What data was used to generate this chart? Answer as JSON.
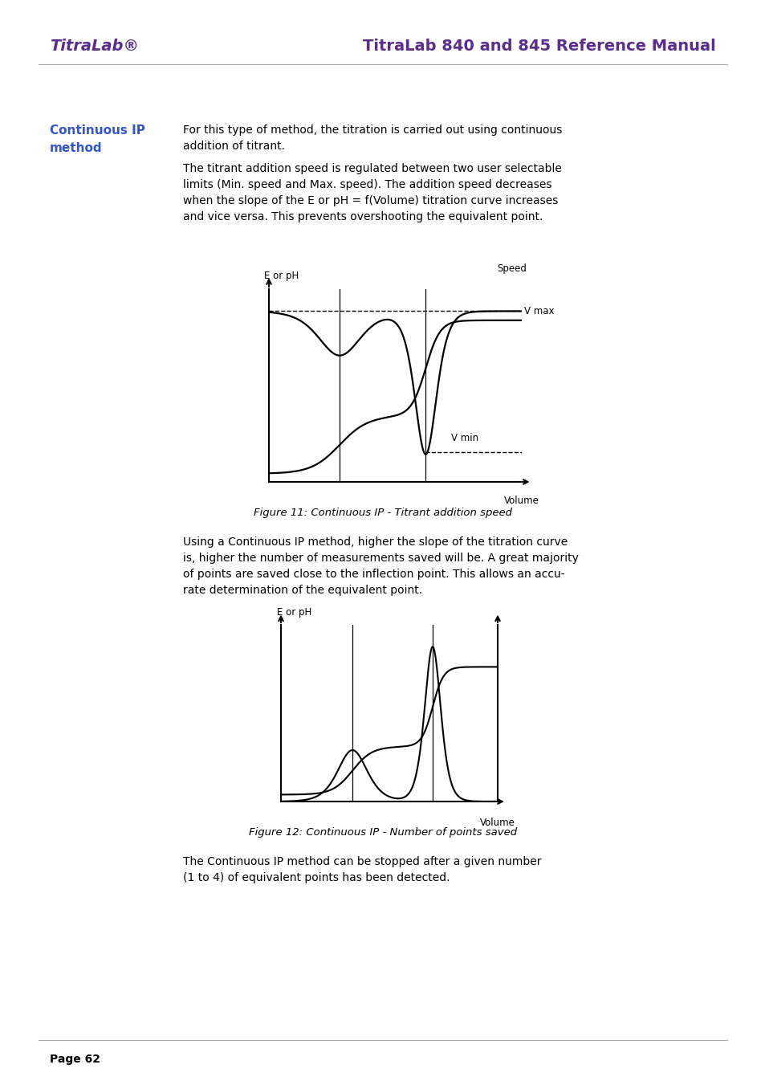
{
  "bg_color": "#ffffff",
  "header_titra_color": "#5b2d8e",
  "header_title_color": "#5b2d8e",
  "header_titra": "TitraLab®",
  "header_title": "TitraLab 840 and 845 Reference Manual",
  "section_title_line1": "Continuous IP",
  "section_title_line2": "method",
  "section_title_color": "#3355cc",
  "body_text1_line1": "For this type of method, the titration is carried out using continuous",
  "body_text1_line2": "addition of titrant.",
  "body_text1_line3": "The titrant addition speed is regulated between two user selectable",
  "body_text1_line4": "limits (Min. speed and Max. speed). The addition speed decreases",
  "body_text1_line5": "when the slope of the E or pH = f(Volume) titration curve increases",
  "body_text1_line6": "and vice versa. This prevents overshooting the equivalent point.",
  "fig1_caption": "Figure 11: Continuous IP - Titrant addition speed",
  "body_text2_line1": "Using a Continuous IP method, higher the slope of the titration curve",
  "body_text2_line2": "is, higher the number of measurements saved will be. A great majority",
  "body_text2_line3": "of points are saved close to the inflection point. This allows an accu-",
  "body_text2_line4": "rate determination of the equivalent point.",
  "fig2_caption": "Figure 12: Continuous IP - Number of points saved",
  "body_text3_line1": "The Continuous IP method can be stopped after a given number",
  "body_text3_line2": "(1 to 4) of equivalent points has been detected.",
  "page_number": "Page 62",
  "fig1_ylabel": "E or pH",
  "fig1_speed_label": "Speed",
  "fig1_vmax_label": "V max",
  "fig1_vmin_label": "V min",
  "fig1_xlabel": "Volume",
  "fig2_ylabel": "E or pH",
  "fig2_xlabel": "Volume",
  "text_color": "#000000",
  "line_color": "#000000"
}
